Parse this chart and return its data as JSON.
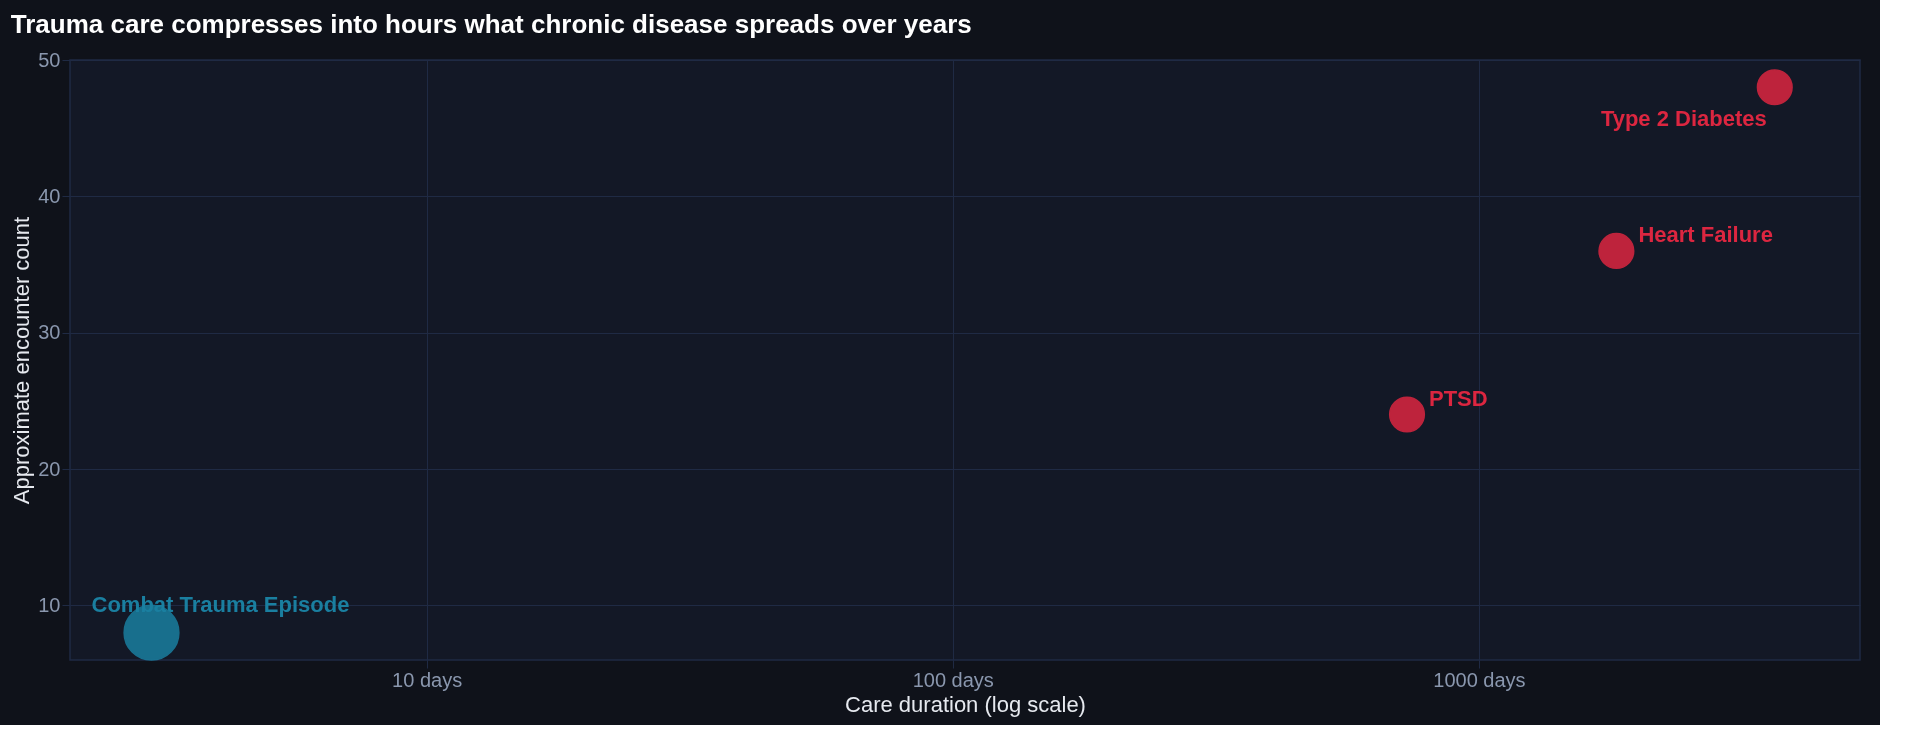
{
  "chart_data": {
    "type": "bubble",
    "title": "Trauma care compresses into hours what chronic disease spreads over years",
    "xlabel": "Care duration (log scale)",
    "ylabel": "Approximate encounter count",
    "x": [
      3,
      730,
      1825,
      3650
    ],
    "values": [
      8,
      24,
      36,
      48
    ],
    "sizes": [
      1,
      0.4,
      0.4,
      0.4
    ],
    "colors": [
      "#1a7fa0",
      "#dc2640",
      "#dc2640",
      "#dc2640"
    ],
    "annotations": [
      {
        "text": "Combat Trauma Episode",
        "x": 3,
        "y": 8
      },
      {
        "text": "PTSD",
        "x": 730,
        "y": 24
      },
      {
        "text": "Heart Failure",
        "x": 1825,
        "y": 36
      },
      {
        "text": "Type 2 Diabetes",
        "x": 3650,
        "y": 48
      }
    ],
    "log": "x",
    "xlim": [
      2.1,
      5300
    ],
    "ylim": [
      6,
      50
    ],
    "xticks": [
      {
        "value": 10,
        "label": "10 days"
      },
      {
        "value": 100,
        "label": "100 days"
      },
      {
        "value": 1000,
        "label": "1000 days"
      }
    ],
    "yticks": [
      10,
      20,
      30,
      40,
      50
    ],
    "grid": true
  }
}
